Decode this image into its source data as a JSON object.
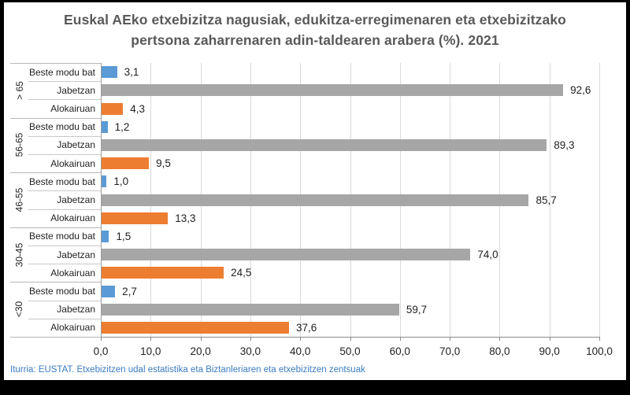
{
  "title_line1": "Euskal AEko etxebizitza nagusiak, edukitza-erregimenaren eta etxebizitzako",
  "title_line2": "pertsona zaharrenaren adin-taldearen arabera (%). 2021",
  "footer": {
    "source_text": "Iturria: EUSTAT. Etxebizitzen udal estatistika eta Biztanleriaren eta etxebizitzen zentsuak"
  },
  "chart_data": {
    "type": "bar",
    "orientation": "horizontal",
    "title": "Euskal AEko etxebizitza nagusiak, edukitza-erregimenaren eta etxebizitzako pertsona zaharrenaren adin-taldearen arabera (%). 2021",
    "xlabel": "",
    "ylabel": "",
    "xlim": [
      0,
      100
    ],
    "grid": true,
    "x_ticks": [
      "0,0",
      "10,0",
      "20,0",
      "30,0",
      "40,0",
      "50,0",
      "60,0",
      "70,0",
      "80,0",
      "90,0",
      "100,0"
    ],
    "series": [
      {
        "name": "Beste modu bat",
        "color": "#5B9BD5"
      },
      {
        "name": "Jabetzan",
        "color": "#A6A6A6"
      },
      {
        "name": "Alokairuan",
        "color": "#ED7D31"
      }
    ],
    "groups": [
      {
        "label": "> 65",
        "values": [
          3.1,
          92.6,
          4.3
        ],
        "value_labels": [
          "3,1",
          "92,6",
          "4,3"
        ]
      },
      {
        "label": "56-65",
        "values": [
          1.2,
          89.3,
          9.5
        ],
        "value_labels": [
          "1,2",
          "89,3",
          "9,5"
        ]
      },
      {
        "label": "46-55",
        "values": [
          1.0,
          85.7,
          13.3
        ],
        "value_labels": [
          "1,0",
          "85,7",
          "13,3"
        ]
      },
      {
        "label": "30-45",
        "values": [
          1.5,
          74.0,
          24.5
        ],
        "value_labels": [
          "1,5",
          "74,0",
          "24,5"
        ]
      },
      {
        "label": "<30",
        "values": [
          2.7,
          59.7,
          37.6
        ],
        "value_labels": [
          "2,7",
          "59,7",
          "37,6"
        ]
      }
    ]
  }
}
